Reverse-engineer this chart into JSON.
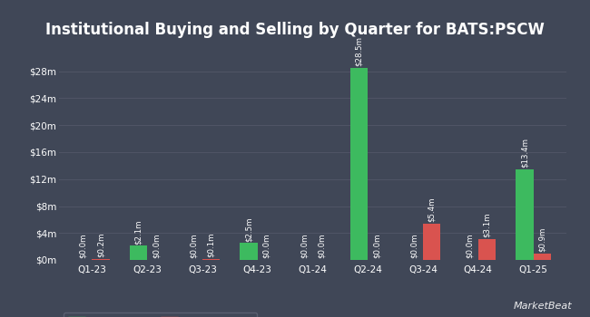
{
  "title": "Institutional Buying and Selling by Quarter for BATS:PSCW",
  "quarters": [
    "Q1-23",
    "Q2-23",
    "Q3-23",
    "Q4-23",
    "Q1-24",
    "Q2-24",
    "Q3-24",
    "Q4-24",
    "Q1-25"
  ],
  "inflows": [
    0.0,
    2.1,
    0.0,
    2.5,
    0.0,
    28.5,
    0.0,
    0.0,
    13.4
  ],
  "outflows": [
    0.2,
    0.0,
    0.1,
    0.0,
    0.0,
    0.0,
    5.4,
    3.1,
    0.9
  ],
  "inflow_labels": [
    "$0.0m",
    "$2.1m",
    "$0.0m",
    "$2.5m",
    "$0.0m",
    "$28.5m",
    "$0.0m",
    "$0.0m",
    "$13.4m"
  ],
  "outflow_labels": [
    "$0.2m",
    "$0.0m",
    "$0.1m",
    "$0.0m",
    "$0.0m",
    "$0.0m",
    "$5.4m",
    "$3.1m",
    "$0.9m"
  ],
  "inflow_color": "#3dba5f",
  "outflow_color": "#d9534f",
  "bg_color": "#404757",
  "plot_bg_color": "#404757",
  "grid_color": "#505566",
  "text_color": "#ffffff",
  "bar_width": 0.32,
  "ylim": [
    0,
    32
  ],
  "yticks": [
    0,
    4,
    8,
    12,
    16,
    20,
    24,
    28
  ],
  "ytick_labels": [
    "$0m",
    "$4m",
    "$8m",
    "$12m",
    "$16m",
    "$20m",
    "$24m",
    "$28m"
  ],
  "title_fontsize": 12,
  "label_fontsize": 6.2,
  "tick_fontsize": 7.5,
  "legend_fontsize": 7.5
}
